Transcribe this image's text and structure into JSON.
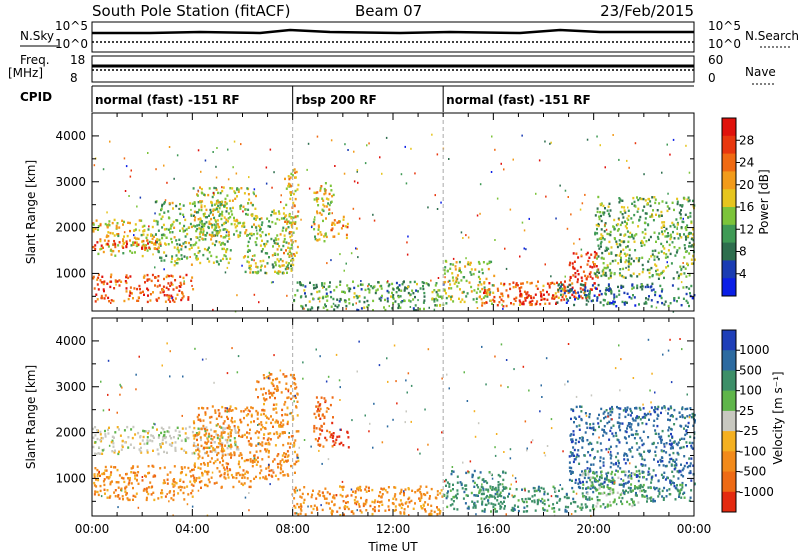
{
  "header": {
    "station": "South Pole Station (fitACF)",
    "beam": "Beam 07",
    "date": "23/Feb/2015"
  },
  "top_panels": {
    "nsky_label": "N.Sky",
    "nsky_ticks": [
      "10^5",
      "10^0"
    ],
    "nsearch_label": "N.Search",
    "nsearch_ticks": [
      "10^5",
      "10^0"
    ],
    "freq_label": "Freq.",
    "freq_unit": "[MHz]",
    "freq_ticks": [
      "18",
      "8"
    ],
    "nave_label": "Nave",
    "nave_ticks": [
      "60",
      "0"
    ],
    "cpid_label": "CPID",
    "cpid_segments": [
      {
        "label": "normal (fast) -151 RF",
        "start": "00:00",
        "end": "08:00"
      },
      {
        "label": "rbsp 200 RF",
        "start": "08:00",
        "end": "14:00"
      },
      {
        "label": "normal (fast) -151 RF",
        "start": "14:00",
        "end": "24:00"
      }
    ]
  },
  "chart_data": [
    {
      "type": "heatmap",
      "title": "",
      "xlabel": "Time UT",
      "ylabel": "Slant Range [km]",
      "x_ticks": [
        "00:00",
        "04:00",
        "08:00",
        "12:00",
        "16:00",
        "20:00",
        "00:00"
      ],
      "y_ticks": [
        "1000",
        "2000",
        "3000",
        "4000"
      ],
      "xlim_hours": [
        0,
        24
      ],
      "ylim": [
        180,
        4500
      ],
      "colorbar_label": "Power [dB]",
      "colorbar_ticks": [
        "4",
        "8",
        "12",
        "16",
        "20",
        "24",
        "28"
      ],
      "colorscale": [
        "#0b1fe6",
        "#1a3cb3",
        "#2e6e4e",
        "#3f9a55",
        "#7cc43a",
        "#e6c51e",
        "#f29b1a",
        "#f06a12",
        "#e8370e",
        "#e0120c"
      ],
      "regions": [
        {
          "t0": 0.0,
          "t1": 2.5,
          "r0": 1400,
          "r1": 2200,
          "level": 0.55
        },
        {
          "t0": 0.0,
          "t1": 2.8,
          "r0": 1550,
          "r1": 1750,
          "level": 0.85
        },
        {
          "t0": 2.5,
          "t1": 5.5,
          "r0": 1200,
          "r1": 2600,
          "level": 0.45
        },
        {
          "t0": 4.0,
          "t1": 6.5,
          "r0": 1800,
          "r1": 2900,
          "level": 0.5
        },
        {
          "t0": 0.0,
          "t1": 4.0,
          "r0": 400,
          "r1": 1000,
          "level": 0.8
        },
        {
          "t0": 6.0,
          "t1": 8.0,
          "r0": 1000,
          "r1": 2400,
          "level": 0.45
        },
        {
          "t0": 7.6,
          "t1": 8.2,
          "r0": 1300,
          "r1": 3300,
          "level": 0.6
        },
        {
          "t0": 8.8,
          "t1": 9.6,
          "r0": 1700,
          "r1": 3000,
          "level": 0.55
        },
        {
          "t0": 9.5,
          "t1": 10.2,
          "r0": 1800,
          "r1": 2300,
          "level": 0.65
        },
        {
          "t0": 8.0,
          "t1": 14.0,
          "r0": 220,
          "r1": 850,
          "level": 0.35
        },
        {
          "t0": 14.0,
          "t1": 16.0,
          "r0": 350,
          "r1": 1300,
          "level": 0.5
        },
        {
          "t0": 15.5,
          "t1": 19.0,
          "r0": 300,
          "r1": 850,
          "level": 0.75
        },
        {
          "t0": 17.0,
          "t1": 18.5,
          "r0": 350,
          "r1": 650,
          "level": 0.95
        },
        {
          "t0": 19.0,
          "t1": 20.2,
          "r0": 450,
          "r1": 1500,
          "level": 0.85
        },
        {
          "t0": 20.0,
          "t1": 24.0,
          "r0": 900,
          "r1": 2700,
          "level": 0.4
        },
        {
          "t0": 18.5,
          "t1": 24.0,
          "r0": 300,
          "r1": 800,
          "level": 0.25
        }
      ]
    },
    {
      "type": "heatmap",
      "title": "",
      "xlabel": "Time UT",
      "ylabel": "Slant Range [km]",
      "x_ticks": [
        "00:00",
        "04:00",
        "08:00",
        "12:00",
        "16:00",
        "20:00",
        "00:00"
      ],
      "y_ticks": [
        "1000",
        "2000",
        "3000",
        "4000"
      ],
      "xlim_hours": [
        0,
        24
      ],
      "ylim": [
        180,
        4500
      ],
      "colorbar_label": "Velocity [m s⁻¹]",
      "colorbar_ticks": [
        "1000",
        "500",
        "100",
        "25",
        "-25",
        "-100",
        "-500",
        "-1000"
      ],
      "colorscale": [
        "#1f3fb8",
        "#2c6aa0",
        "#3d8f68",
        "#5fb54a",
        "#c8c8c0",
        "#f4b020",
        "#f28a1a",
        "#ee6a14",
        "#e42a10"
      ],
      "regions": [
        {
          "t0": 0.0,
          "t1": 5.8,
          "r0": 1550,
          "r1": 2150,
          "level": 4
        },
        {
          "t0": 0.0,
          "t1": 4.0,
          "r0": 550,
          "r1": 1300,
          "level": 6
        },
        {
          "t0": 4.0,
          "t1": 6.5,
          "r0": 800,
          "r1": 2600,
          "level": 6
        },
        {
          "t0": 6.5,
          "t1": 8.2,
          "r0": 1000,
          "r1": 3300,
          "level": 6
        },
        {
          "t0": 8.8,
          "t1": 9.6,
          "r0": 1700,
          "r1": 2800,
          "level": 7
        },
        {
          "t0": 9.5,
          "t1": 10.2,
          "r0": 1700,
          "r1": 2100,
          "level": 8
        },
        {
          "t0": 8.0,
          "t1": 14.0,
          "r0": 220,
          "r1": 850,
          "level": 6
        },
        {
          "t0": 14.0,
          "t1": 16.5,
          "r0": 350,
          "r1": 1200,
          "level": 2
        },
        {
          "t0": 15.5,
          "t1": 20.0,
          "r0": 300,
          "r1": 850,
          "level": 2
        },
        {
          "t0": 19.0,
          "t1": 24.0,
          "r0": 800,
          "r1": 2600,
          "level": 1
        },
        {
          "t0": 19.5,
          "t1": 22.0,
          "r0": 400,
          "r1": 1200,
          "level": 3
        },
        {
          "t0": 21.0,
          "t1": 24.0,
          "r0": 500,
          "r1": 900,
          "level": 2
        }
      ]
    }
  ],
  "axis": {
    "x_title": "Time UT"
  }
}
